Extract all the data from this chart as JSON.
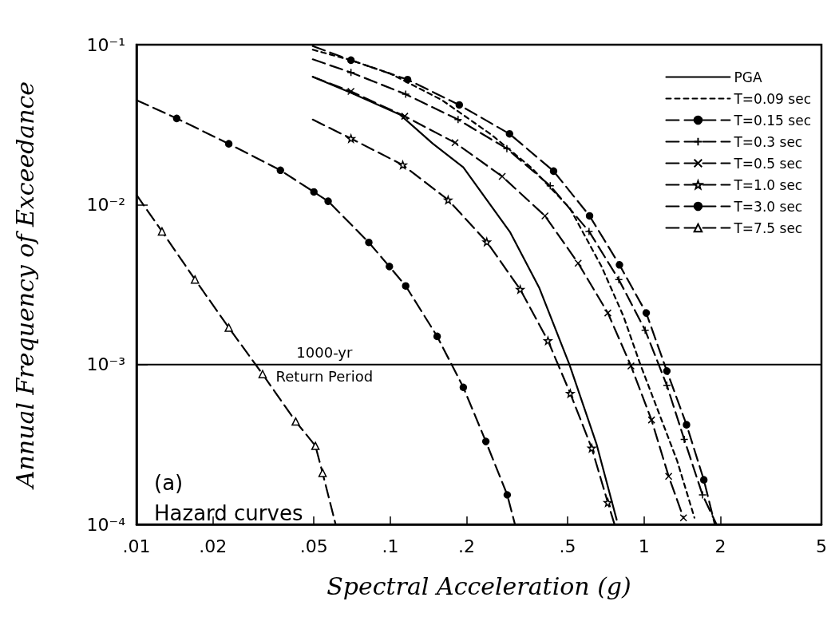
{
  "chart_data": {
    "type": "line",
    "xlabel": "Spectral Acceleration (g)",
    "ylabel": "Annual Frequency of Exceedance",
    "log": "xy",
    "grid": false,
    "legend": "top right",
    "line_style": "dashed",
    "xlim": [
      0.01,
      5
    ],
    "xticks": [
      {
        "value": 0.01,
        "label": ".01"
      },
      {
        "value": 0.02,
        "label": ".02"
      },
      {
        "value": 0.05,
        "label": ".05"
      },
      {
        "value": 0.1,
        "label": ".1"
      },
      {
        "value": 0.2,
        "label": ".2"
      },
      {
        "value": 0.5,
        "label": ".5"
      },
      1,
      2,
      5
    ],
    "ylim": [
      0.0001,
      0.1
    ],
    "yticks": [
      {
        "value": 0.0001,
        "label": "10⁻⁴"
      },
      {
        "value": 0.001,
        "label": "10⁻³"
      },
      {
        "value": 0.01,
        "label": "10⁻²"
      },
      {
        "value": 0.1,
        "label": "10⁻¹"
      }
    ],
    "ref_lines": [
      {
        "axis": "y",
        "value": 0.001,
        "color": "#000000",
        "line_style": "solid"
      }
    ],
    "annotations": [
      "1000-yr",
      "Return Period",
      "(a)",
      "Hazard curves"
    ],
    "series": [
      {
        "name": "PGA",
        "color": "#000000",
        "line_style": "solid",
        "marker": "none",
        "x": [
          0.0495,
          0.07,
          0.109,
          0.147,
          0.194,
          0.297,
          0.387,
          0.508,
          0.649,
          0.78
        ],
        "values": [
          0.063,
          0.05,
          0.0366,
          0.0241,
          0.0171,
          0.0067,
          0.003,
          0.001,
          0.00032,
          0.000107
        ]
      },
      {
        "name": "T=0.09 sec",
        "color": "#000000",
        "line_style": "dashed",
        "marker": "none",
        "x": [
          0.0495,
          0.07,
          0.1,
          0.16,
          0.25,
          0.36,
          0.51,
          0.68,
          0.83,
          0.967,
          1.16,
          1.35,
          1.58
        ],
        "values": [
          0.093,
          0.08,
          0.066,
          0.045,
          0.0274,
          0.017,
          0.0095,
          0.0041,
          0.002,
          0.001,
          0.00047,
          0.00025,
          0.00011
        ]
      },
      {
        "name": "T=0.15 sec",
        "color": "#000000",
        "marker": "circle",
        "x": [
          0.0495,
          0.07,
          0.117,
          0.187,
          0.295,
          0.44,
          0.61,
          0.8,
          1.02,
          1.23,
          1.47,
          1.72,
          1.9
        ],
        "values": [
          0.098,
          0.08,
          0.0605,
          0.042,
          0.0277,
          0.0162,
          0.0085,
          0.0042,
          0.0021,
          0.00091,
          0.00042,
          0.00019,
          0.0001
        ]
      },
      {
        "name": "T=0.3 sec",
        "color": "#000000",
        "marker": "cross",
        "x": [
          0.0495,
          0.07,
          0.115,
          0.185,
          0.288,
          0.427,
          0.607,
          0.795,
          1.01,
          1.23,
          1.44,
          1.7,
          1.93
        ],
        "values": [
          0.081,
          0.067,
          0.049,
          0.034,
          0.0224,
          0.0131,
          0.0068,
          0.0034,
          0.00164,
          0.00074,
          0.00034,
          0.000153,
          0.0001
        ]
      },
      {
        "name": "T=0.5 sec",
        "color": "#000000",
        "marker": "x",
        "x": [
          0.0495,
          0.07,
          0.114,
          0.18,
          0.276,
          0.407,
          0.55,
          0.72,
          0.888,
          1.07,
          1.25,
          1.43
        ],
        "values": [
          0.063,
          0.051,
          0.0357,
          0.0244,
          0.015,
          0.0085,
          0.0043,
          0.0021,
          0.00098,
          0.00045,
          0.0002,
          0.00011
        ]
      },
      {
        "name": "T=1.0 sec",
        "color": "#000000",
        "marker": "star",
        "x": [
          0.0495,
          0.07,
          0.112,
          0.169,
          0.24,
          0.325,
          0.418,
          0.512,
          0.622,
          0.72,
          0.765
        ],
        "values": [
          0.034,
          0.0259,
          0.0177,
          0.0107,
          0.00585,
          0.00295,
          0.00141,
          0.00066,
          0.0003,
          0.000137,
          0.0001
        ]
      },
      {
        "name": "T=3.0 sec",
        "color": "#000000",
        "marker": "circle",
        "x": [
          0.01,
          0.0144,
          0.0231,
          0.0369,
          0.05,
          0.0569,
          0.0823,
          0.0992,
          0.115,
          0.153,
          0.194,
          0.238,
          0.289,
          0.31
        ],
        "values": [
          0.045,
          0.0346,
          0.024,
          0.0164,
          0.012,
          0.0105,
          0.0058,
          0.0041,
          0.0031,
          0.0015,
          0.00072,
          0.00033,
          0.000153,
          0.0001
        ]
      },
      {
        "name": "T=7.5 sec",
        "color": "#000000",
        "marker": "triangle",
        "x": [
          0.01,
          0.0126,
          0.017,
          0.0231,
          0.0314,
          0.0424,
          0.0507,
          0.0541,
          0.0609
        ],
        "values": [
          0.0115,
          0.0068,
          0.0034,
          0.0017,
          0.00087,
          0.00044,
          0.00031,
          0.00021,
          0.0001
        ]
      }
    ]
  }
}
